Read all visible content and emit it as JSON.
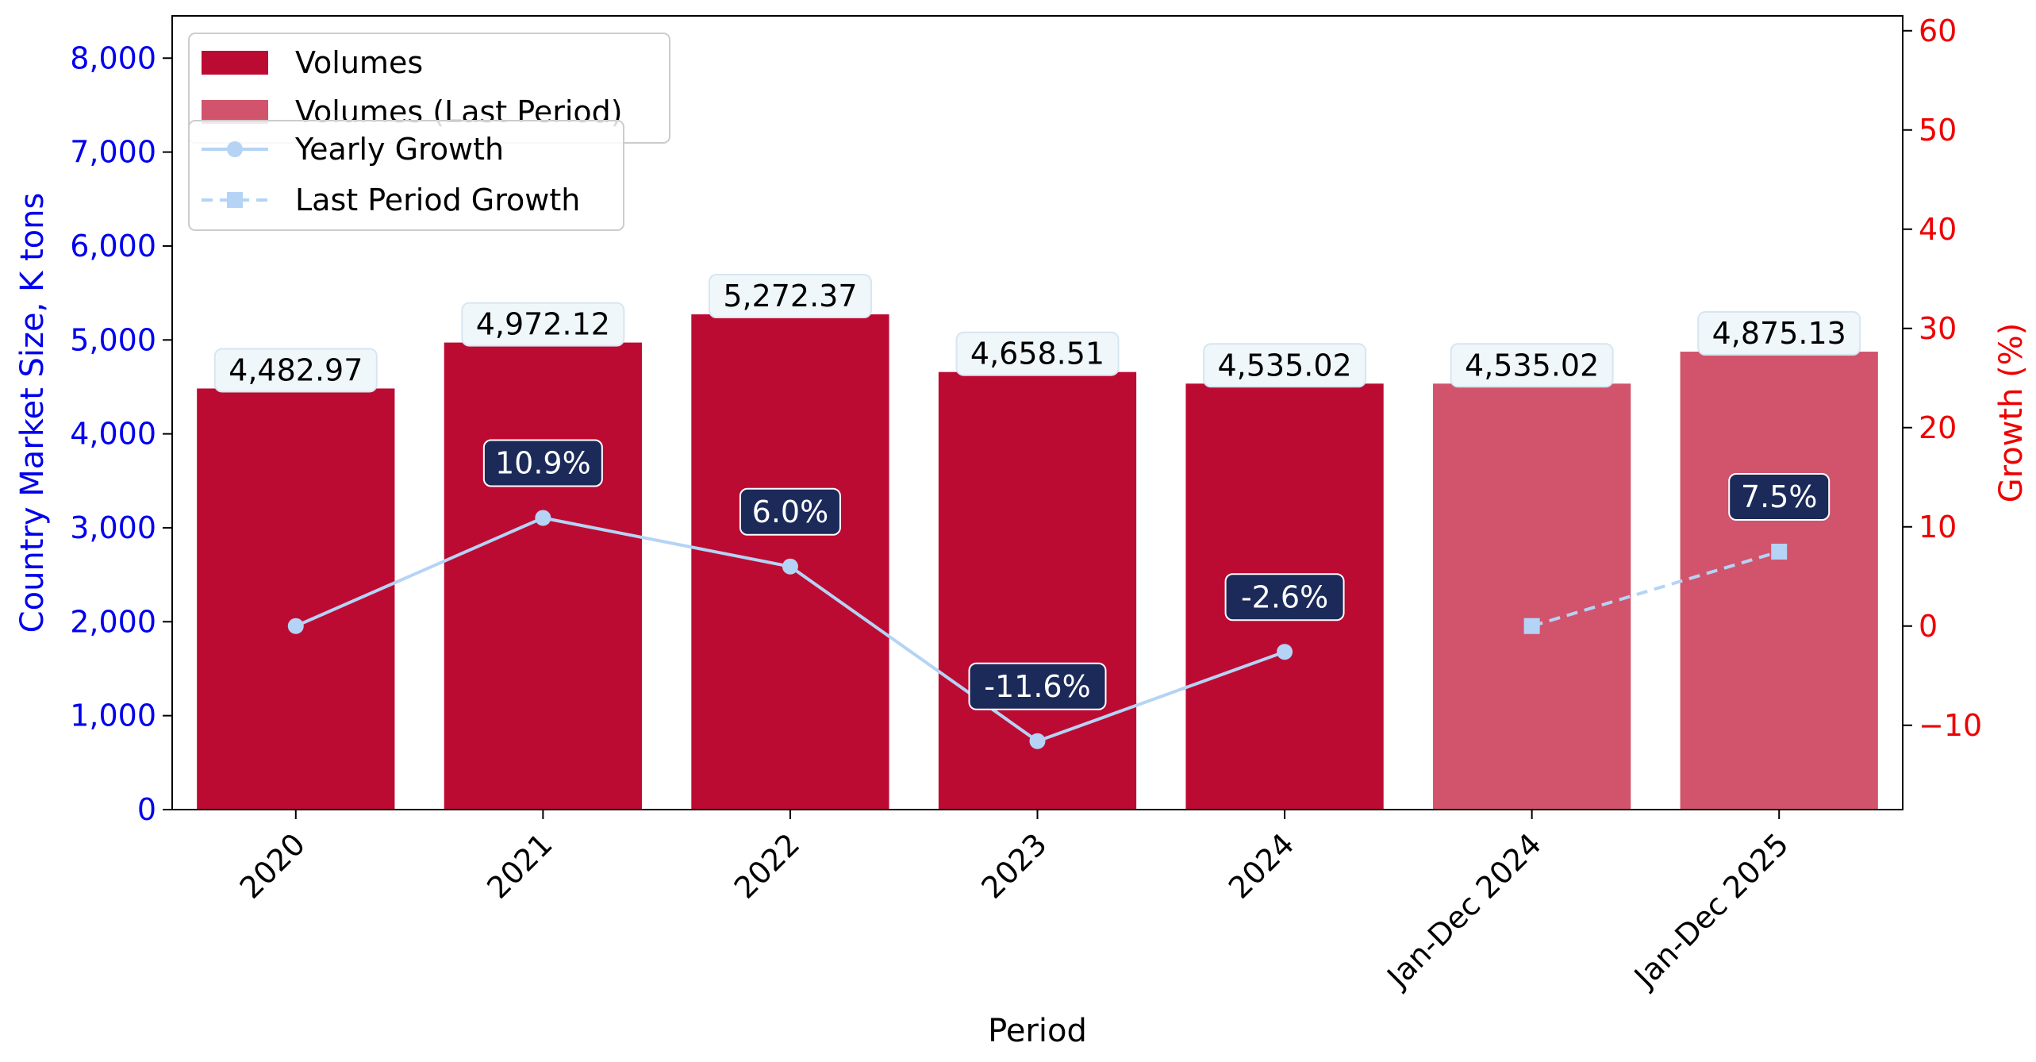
{
  "chart_data": {
    "type": "bar",
    "categories": [
      "2020",
      "2021",
      "2022",
      "2023",
      "2024",
      "Jan-Dec 2024",
      "Jan-Dec 2025"
    ],
    "xlabel": "Period",
    "ylabel_left": "Country Market Size, K tons",
    "ylabel_right": "Growth (%)",
    "ylim_left": [
      0,
      8450
    ],
    "ylim_right": [
      -18.5,
      61.5
    ],
    "yticks_left": [
      0,
      1000,
      2000,
      3000,
      4000,
      5000,
      6000,
      7000,
      8000
    ],
    "yticks_left_labels": [
      "0",
      "1,000",
      "2,000",
      "3,000",
      "4,000",
      "5,000",
      "6,000",
      "7,000",
      "8,000"
    ],
    "yticks_right": [
      -10,
      0,
      10,
      20,
      30,
      40,
      50,
      60
    ],
    "yticks_right_labels": [
      "−10",
      "0",
      "10",
      "20",
      "30",
      "40",
      "50",
      "60"
    ],
    "series": [
      {
        "name": "Volumes",
        "kind": "bar",
        "color": "#BC0B32",
        "values": [
          4482.97,
          4972.12,
          5272.37,
          4658.51,
          4535.02,
          null,
          null
        ],
        "labels": [
          "4,482.97",
          "4,972.12",
          "5,272.37",
          "4,658.51",
          "4,535.02",
          "",
          ""
        ]
      },
      {
        "name": "Volumes (Last Period)",
        "kind": "bar",
        "color": "#D1546C",
        "values": [
          null,
          null,
          null,
          null,
          null,
          4535.02,
          4875.13
        ],
        "labels": [
          "",
          "",
          "",
          "",
          "",
          "4,535.02",
          "4,875.13"
        ]
      },
      {
        "name": "Yearly Growth",
        "kind": "line",
        "axis": "right",
        "color": "#B5D3F5",
        "marker": "circle",
        "values": [
          0,
          10.9,
          6.0,
          -11.6,
          -2.6,
          null,
          null
        ],
        "labels": [
          "",
          "10.9%",
          "6.0%",
          "-11.6%",
          "-2.6%",
          "",
          ""
        ]
      },
      {
        "name": "Last Period Growth",
        "kind": "line",
        "axis": "right",
        "dashed": true,
        "color": "#B5D3F5",
        "marker": "square",
        "values": [
          null,
          null,
          null,
          null,
          null,
          0,
          7.5
        ],
        "labels": [
          "",
          "",
          "",
          "",
          "",
          "",
          "7.5%"
        ]
      }
    ],
    "colors": {
      "left_axis": "#0000EE",
      "right_axis": "#EE0000",
      "growth_label_bg": "#1C2A5A",
      "volume_label_bg": "#F0F7FB"
    },
    "legend_placement": "top-left",
    "grid": false
  }
}
